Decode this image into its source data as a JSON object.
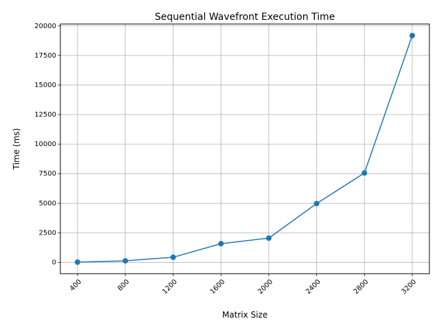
{
  "chart_data": {
    "type": "line",
    "title": "Sequential Wavefront Execution Time",
    "xlabel": "Matrix Size",
    "ylabel": "Time (ms)",
    "x": [
      400,
      800,
      1200,
      1600,
      2000,
      2400,
      2800,
      3200
    ],
    "x_tick_labels": [
      "400",
      "800",
      "1200",
      "1600",
      "2000",
      "2400",
      "2800",
      "3200"
    ],
    "y_ticks": [
      0,
      2500,
      5000,
      7500,
      10000,
      12500,
      15000,
      17500,
      20000
    ],
    "y_tick_labels": [
      "0",
      "2500",
      "5000",
      "7500",
      "10000",
      "12500",
      "15000",
      "17500",
      "20000"
    ],
    "ylim": [
      -960,
      20160
    ],
    "grid": true,
    "x_tick_rotation": 45,
    "series": [
      {
        "values": [
          20,
          130,
          430,
          1580,
          2050,
          4970,
          7560,
          19180
        ],
        "color": "#1f77b4",
        "marker": "circle"
      }
    ]
  }
}
